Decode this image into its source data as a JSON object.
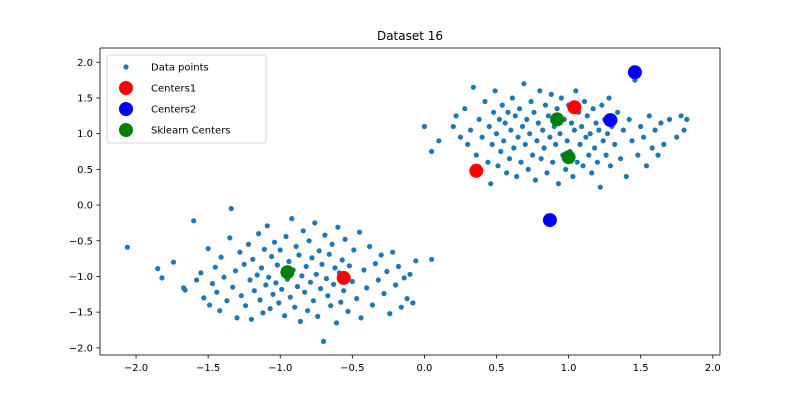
{
  "chart_data": {
    "type": "scatter",
    "title": "Dataset 16",
    "xlabel": "",
    "ylabel": "",
    "xlim": [
      -2.25,
      2.05
    ],
    "ylim": [
      -2.1,
      2.2
    ],
    "x_ticks": [
      -2.0,
      -1.5,
      -1.0,
      -0.5,
      0.0,
      0.5,
      1.0,
      1.5,
      2.0
    ],
    "x_tick_labels": [
      "−2.0",
      "−1.5",
      "−1.0",
      "−0.5",
      "0.0",
      "0.5",
      "1.0",
      "1.5",
      "2.0"
    ],
    "y_ticks": [
      -2.0,
      -1.5,
      -1.0,
      -0.5,
      0.0,
      0.5,
      1.0,
      1.5,
      2.0
    ],
    "y_tick_labels": [
      "−2.0",
      "−1.5",
      "−1.0",
      "−0.5",
      "0.0",
      "0.5",
      "1.0",
      "1.5",
      "2.0"
    ],
    "grid": false,
    "legend_position": "top-left",
    "series": [
      {
        "name": "Data points",
        "color": "#1f77b4",
        "marker": "small-dot",
        "points": [
          [
            -2.06,
            -0.59
          ],
          [
            -1.85,
            -0.89
          ],
          [
            -1.82,
            -1.02
          ],
          [
            -1.74,
            -0.8
          ],
          [
            -1.67,
            -1.16
          ],
          [
            -1.66,
            -1.19
          ],
          [
            -1.6,
            -0.22
          ],
          [
            -1.58,
            -1.05
          ],
          [
            -1.55,
            -0.95
          ],
          [
            -1.53,
            -1.3
          ],
          [
            -1.5,
            -0.61
          ],
          [
            -1.49,
            -1.4
          ],
          [
            -1.47,
            -1.1
          ],
          [
            -1.45,
            -0.87
          ],
          [
            -1.44,
            -1.22
          ],
          [
            -1.42,
            -1.48
          ],
          [
            -1.41,
            -0.73
          ],
          [
            -1.39,
            -1.01
          ],
          [
            -1.37,
            -1.34
          ],
          [
            -1.35,
            -0.46
          ],
          [
            -1.34,
            -0.05
          ],
          [
            -1.33,
            -1.15
          ],
          [
            -1.31,
            -0.92
          ],
          [
            -1.3,
            -1.58
          ],
          [
            -1.28,
            -0.66
          ],
          [
            -1.27,
            -1.27
          ],
          [
            -1.25,
            -0.83
          ],
          [
            -1.24,
            -1.41
          ],
          [
            -1.22,
            -0.55
          ],
          [
            -1.21,
            -1.05
          ],
          [
            -1.2,
            -1.6
          ],
          [
            -1.19,
            -0.76
          ],
          [
            -1.18,
            -1.2
          ],
          [
            -1.16,
            -0.98
          ],
          [
            -1.15,
            -0.4
          ],
          [
            -1.14,
            -1.33
          ],
          [
            -1.13,
            -0.88
          ],
          [
            -1.12,
            -1.51
          ],
          [
            -1.11,
            -0.62
          ],
          [
            -1.1,
            -1.12
          ],
          [
            -1.09,
            -0.29
          ],
          [
            -1.08,
            -1.01
          ],
          [
            -1.07,
            -1.45
          ],
          [
            -1.06,
            -0.72
          ],
          [
            -1.05,
            -1.25
          ],
          [
            -1.04,
            -0.52
          ],
          [
            -1.03,
            -1.09
          ],
          [
            -1.02,
            -0.84
          ],
          [
            -1.01,
            -1.37
          ],
          [
            -1.0,
            -0.63
          ],
          [
            -0.99,
            -1.18
          ],
          [
            -0.98,
            -0.95
          ],
          [
            -0.97,
            -1.55
          ],
          [
            -0.96,
            -0.44
          ],
          [
            -0.95,
            -1.04
          ],
          [
            -0.94,
            -0.79
          ],
          [
            -0.93,
            -1.29
          ],
          [
            -0.92,
            -0.19
          ],
          [
            -0.91,
            -0.91
          ],
          [
            -0.9,
            -1.43
          ],
          [
            -0.89,
            -0.58
          ],
          [
            -0.88,
            -1.14
          ],
          [
            -0.87,
            -0.7
          ],
          [
            -0.86,
            -1.63
          ],
          [
            -0.85,
            -0.99
          ],
          [
            -0.84,
            -0.36
          ],
          [
            -0.83,
            -1.22
          ],
          [
            -0.82,
            -0.86
          ],
          [
            -0.81,
            -1.48
          ],
          [
            -0.8,
            -0.5
          ],
          [
            -0.79,
            -1.08
          ],
          [
            -0.78,
            -0.74
          ],
          [
            -0.77,
            -1.34
          ],
          [
            -0.76,
            -0.25
          ],
          [
            -0.75,
            -0.97
          ],
          [
            -0.74,
            -1.56
          ],
          [
            -0.73,
            -0.64
          ],
          [
            -0.72,
            -1.17
          ],
          [
            -0.71,
            -0.83
          ],
          [
            -0.7,
            -1.91
          ],
          [
            -0.69,
            -0.42
          ],
          [
            -0.68,
            -1.03
          ],
          [
            -0.67,
            -1.27
          ],
          [
            -0.66,
            -0.69
          ],
          [
            -0.65,
            -1.41
          ],
          [
            -0.64,
            -0.55
          ],
          [
            -0.63,
            -1.11
          ],
          [
            -0.62,
            -0.88
          ],
          [
            -0.61,
            -1.65
          ],
          [
            -0.6,
            -0.31
          ],
          [
            -0.59,
            -0.95
          ],
          [
            -0.58,
            -1.36
          ],
          [
            -0.57,
            -0.77
          ],
          [
            -0.56,
            -1.2
          ],
          [
            -0.55,
            -0.48
          ],
          [
            -0.53,
            -1.49
          ],
          [
            -0.52,
            -0.85
          ],
          [
            -0.5,
            -1.07
          ],
          [
            -0.49,
            -0.63
          ],
          [
            -0.47,
            -1.31
          ],
          [
            -0.45,
            -0.38
          ],
          [
            -0.44,
            -1.58
          ],
          [
            -0.42,
            -0.91
          ],
          [
            -0.4,
            -1.16
          ],
          [
            -0.38,
            -0.58
          ],
          [
            -0.36,
            -1.4
          ],
          [
            -0.34,
            -0.82
          ],
          [
            -0.32,
            -1.05
          ],
          [
            -0.3,
            -0.7
          ],
          [
            -0.28,
            -1.24
          ],
          [
            -0.26,
            -0.93
          ],
          [
            -0.24,
            -1.52
          ],
          [
            -0.22,
            -0.66
          ],
          [
            -0.2,
            -1.12
          ],
          [
            -0.18,
            -0.86
          ],
          [
            -0.16,
            -1.43
          ],
          [
            -0.14,
            -1.02
          ],
          [
            -0.12,
            -1.31
          ],
          [
            -0.1,
            -0.97
          ],
          [
            -0.08,
            -1.37
          ],
          [
            -0.06,
            -0.78
          ],
          [
            0.05,
            -0.76
          ],
          [
            0.0,
            1.1
          ],
          [
            0.05,
            0.75
          ],
          [
            0.1,
            0.9
          ],
          [
            0.2,
            1.1
          ],
          [
            0.22,
            1.25
          ],
          [
            0.25,
            0.95
          ],
          [
            0.28,
            1.35
          ],
          [
            0.3,
            0.85
          ],
          [
            0.32,
            1.05
          ],
          [
            0.34,
            1.65
          ],
          [
            0.36,
            0.7
          ],
          [
            0.38,
            1.2
          ],
          [
            0.4,
            0.95
          ],
          [
            0.42,
            1.45
          ],
          [
            0.44,
            0.6
          ],
          [
            0.45,
            1.1
          ],
          [
            0.46,
            0.3
          ],
          [
            0.47,
            0.85
          ],
          [
            0.48,
            1.3
          ],
          [
            0.49,
            1.6
          ],
          [
            0.5,
            1.0
          ],
          [
            0.51,
            0.55
          ],
          [
            0.52,
            1.2
          ],
          [
            0.53,
            0.75
          ],
          [
            0.54,
            1.4
          ],
          [
            0.55,
            0.9
          ],
          [
            0.56,
            1.15
          ],
          [
            0.57,
            0.45
          ],
          [
            0.58,
            1.3
          ],
          [
            0.59,
            0.65
          ],
          [
            0.6,
            1.05
          ],
          [
            0.61,
            1.5
          ],
          [
            0.62,
            0.8
          ],
          [
            0.63,
            1.25
          ],
          [
            0.64,
            0.4
          ],
          [
            0.65,
            0.95
          ],
          [
            0.66,
            1.35
          ],
          [
            0.67,
            0.6
          ],
          [
            0.68,
            1.1
          ],
          [
            0.69,
            1.7
          ],
          [
            0.7,
            0.85
          ],
          [
            0.71,
            1.2
          ],
          [
            0.72,
            0.5
          ],
          [
            0.73,
            1.0
          ],
          [
            0.74,
            1.45
          ],
          [
            0.75,
            0.7
          ],
          [
            0.76,
            1.3
          ],
          [
            0.77,
            0.35
          ],
          [
            0.78,
            0.9
          ],
          [
            0.79,
            1.15
          ],
          [
            0.8,
            1.6
          ],
          [
            0.81,
            0.65
          ],
          [
            0.82,
            1.05
          ],
          [
            0.83,
            0.8
          ],
          [
            0.84,
            1.4
          ],
          [
            0.85,
            0.45
          ],
          [
            0.86,
            1.25
          ],
          [
            0.87,
            0.95
          ],
          [
            0.88,
            1.55
          ],
          [
            0.89,
            0.6
          ],
          [
            0.9,
            1.1
          ],
          [
            0.91,
            0.85
          ],
          [
            0.92,
            1.35
          ],
          [
            0.93,
            0.3
          ],
          [
            0.94,
            1.0
          ],
          [
            0.95,
            1.5
          ],
          [
            0.96,
            0.7
          ],
          [
            0.97,
            1.2
          ],
          [
            0.98,
            0.5
          ],
          [
            0.99,
            0.9
          ],
          [
            1.0,
            1.4
          ],
          [
            1.01,
            0.75
          ],
          [
            1.02,
            1.15
          ],
          [
            1.03,
            0.4
          ],
          [
            1.04,
            1.05
          ],
          [
            1.05,
            1.6
          ],
          [
            1.06,
            0.6
          ],
          [
            1.07,
            1.3
          ],
          [
            1.08,
            0.85
          ],
          [
            1.09,
            1.1
          ],
          [
            1.1,
            0.55
          ],
          [
            1.11,
            1.45
          ],
          [
            1.12,
            0.95
          ],
          [
            1.13,
            1.25
          ],
          [
            1.14,
            0.7
          ],
          [
            1.15,
            1.0
          ],
          [
            1.16,
            0.45
          ],
          [
            1.17,
            1.35
          ],
          [
            1.18,
            0.8
          ],
          [
            1.19,
            1.15
          ],
          [
            1.2,
            0.6
          ],
          [
            1.21,
            1.05
          ],
          [
            1.22,
            0.25
          ],
          [
            1.23,
            1.4
          ],
          [
            1.24,
            0.9
          ],
          [
            1.25,
            1.2
          ],
          [
            1.26,
            0.7
          ],
          [
            1.27,
            1.0
          ],
          [
            1.28,
            1.5
          ],
          [
            1.29,
            0.55
          ],
          [
            1.3,
            1.1
          ],
          [
            1.32,
            0.85
          ],
          [
            1.34,
            1.3
          ],
          [
            1.36,
            0.65
          ],
          [
            1.38,
            1.05
          ],
          [
            1.4,
            0.4
          ],
          [
            1.42,
            1.2
          ],
          [
            1.44,
            0.9
          ],
          [
            1.46,
            1.75
          ],
          [
            1.48,
            0.7
          ],
          [
            1.5,
            1.1
          ],
          [
            1.52,
            0.95
          ],
          [
            1.54,
            0.55
          ],
          [
            1.56,
            1.25
          ],
          [
            1.58,
            0.8
          ],
          [
            1.6,
            1.05
          ],
          [
            1.62,
            0.7
          ],
          [
            1.64,
            1.15
          ],
          [
            1.66,
            0.85
          ],
          [
            1.7,
            1.2
          ],
          [
            1.75,
            0.95
          ],
          [
            1.78,
            1.25
          ],
          [
            1.8,
            1.05
          ],
          [
            1.82,
            1.2
          ]
        ]
      },
      {
        "name": "Centers1",
        "color": "#ff0000",
        "marker": "large-dot",
        "points": [
          [
            0.36,
            0.48
          ],
          [
            1.04,
            1.37
          ],
          [
            -0.56,
            -1.02
          ]
        ]
      },
      {
        "name": "Centers2",
        "color": "#0000ff",
        "marker": "large-dot",
        "points": [
          [
            1.46,
            1.86
          ],
          [
            1.29,
            1.19
          ],
          [
            0.87,
            -0.21
          ]
        ]
      },
      {
        "name": "Sklearn Centers",
        "color": "#008000",
        "marker": "large-dot",
        "points": [
          [
            0.92,
            1.2
          ],
          [
            1.0,
            0.67
          ],
          [
            -0.95,
            -0.94
          ]
        ]
      }
    ]
  }
}
